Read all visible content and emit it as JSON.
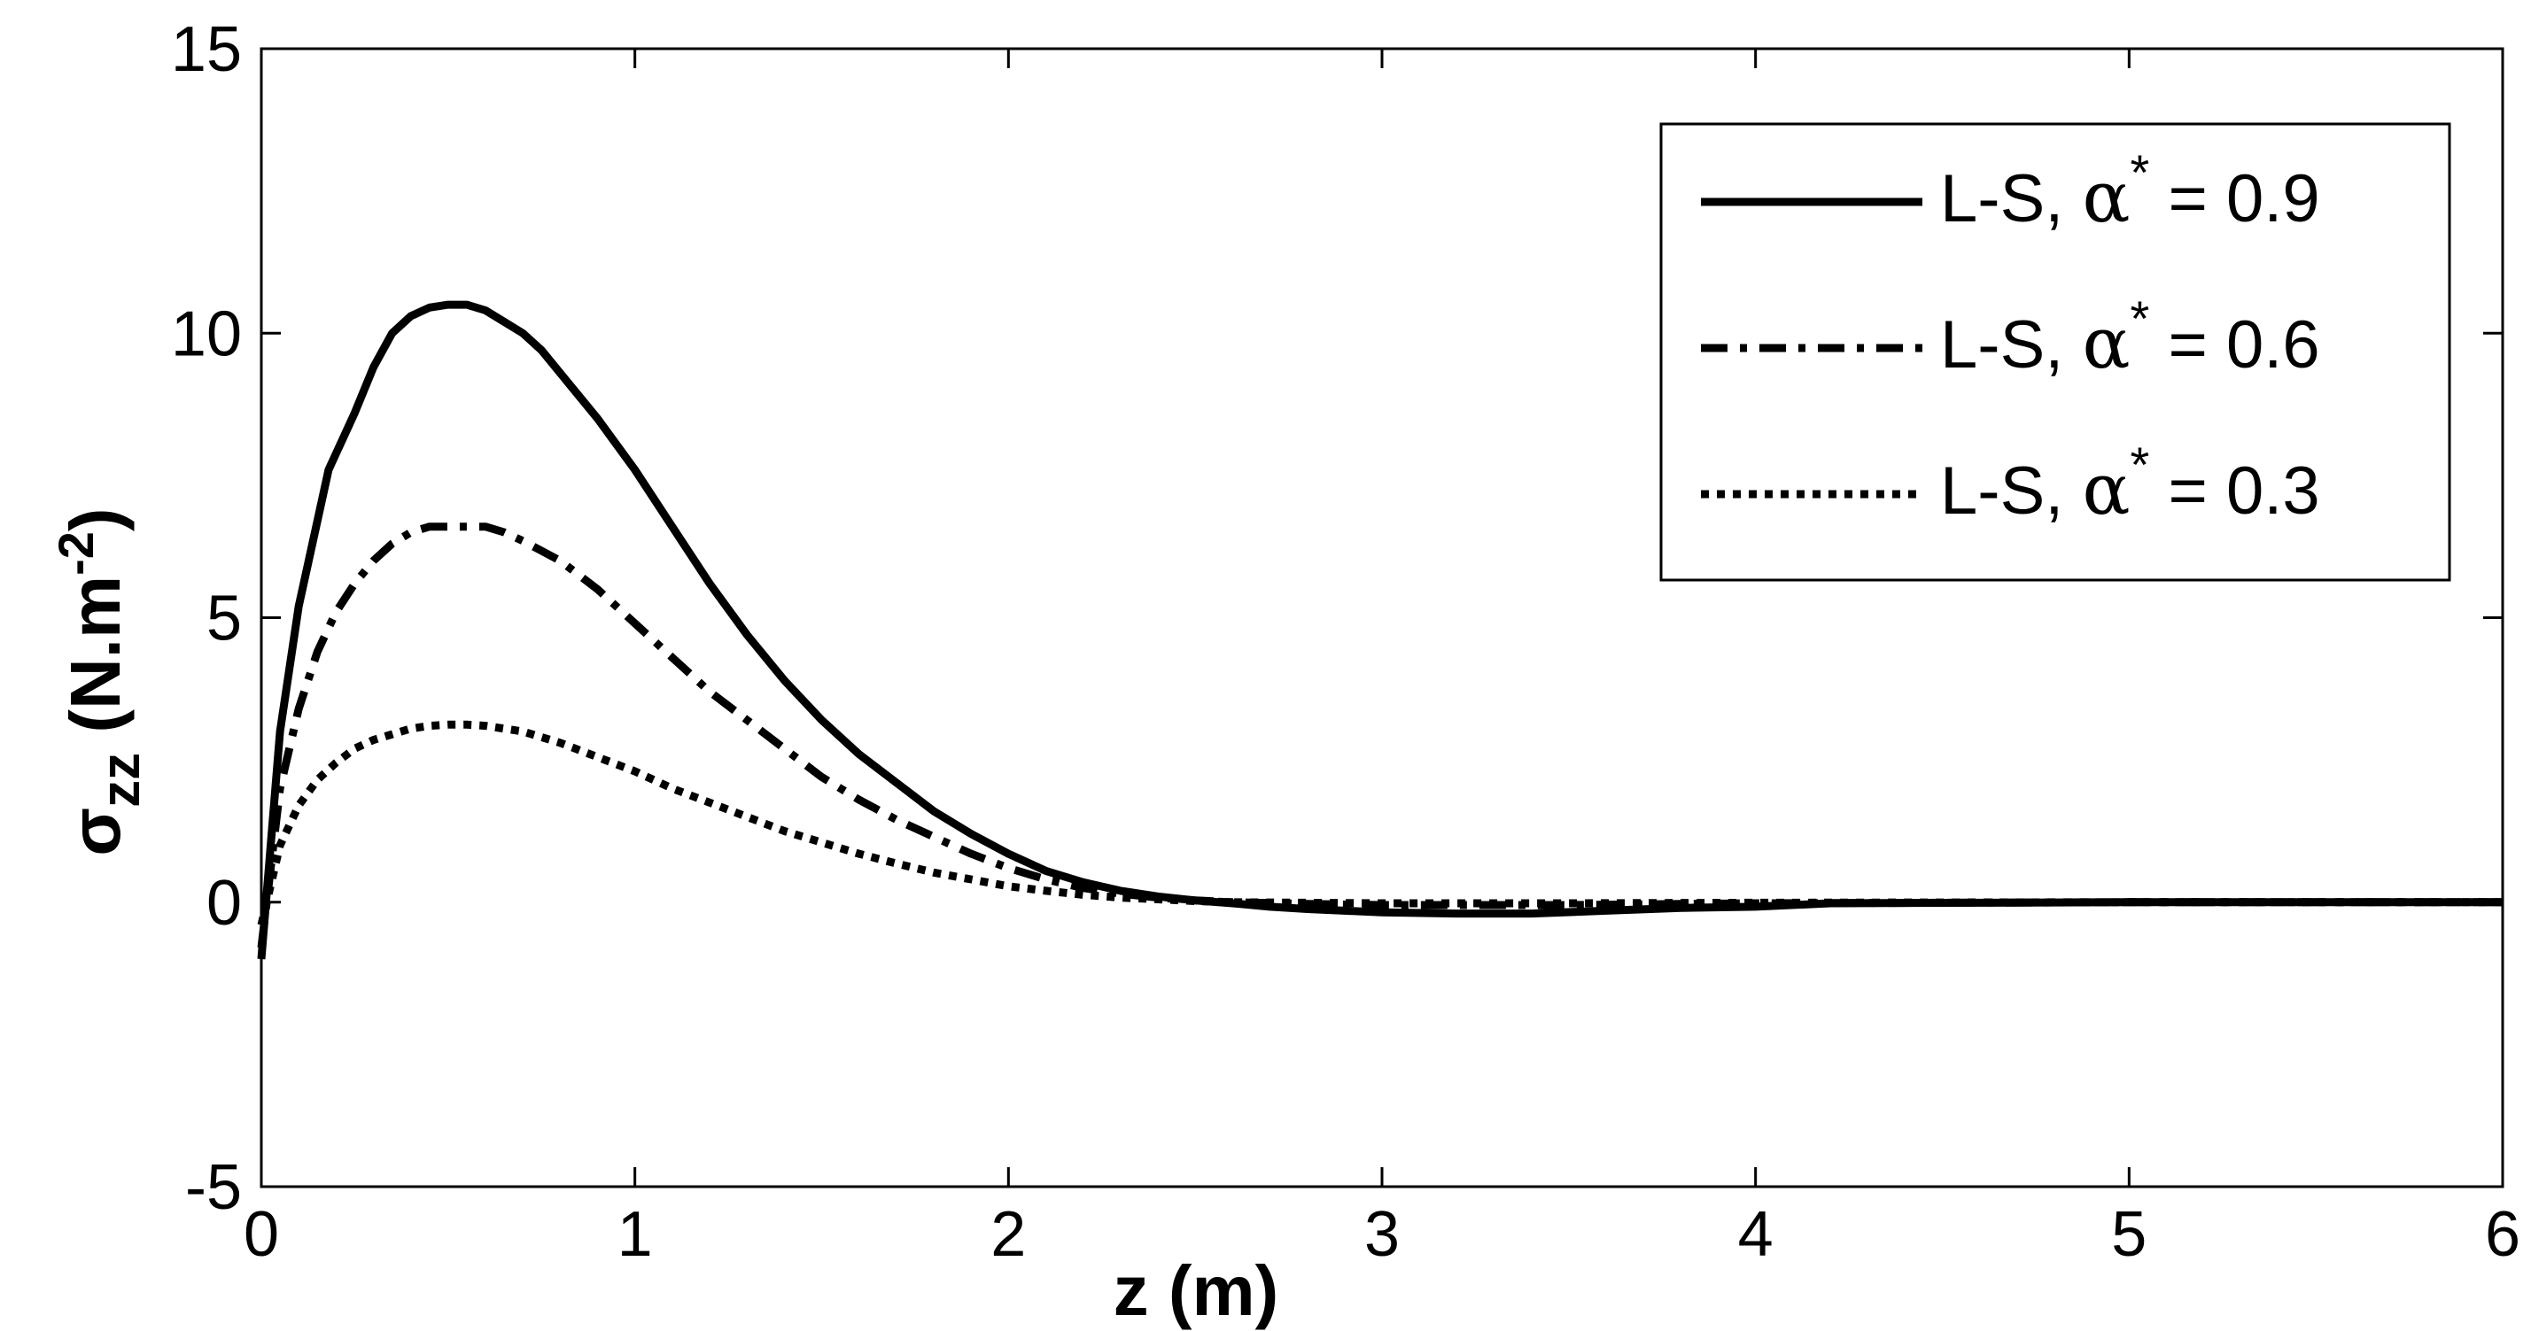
{
  "chart_data": {
    "type": "line",
    "title": "",
    "xlabel": "z (m)",
    "ylabel": {
      "base": "σ",
      "sub": "zz",
      "rest_open": " (N.m",
      "sup": "-2",
      "rest_close": ")"
    },
    "xlim": [
      0,
      6
    ],
    "ylim": [
      -5,
      15
    ],
    "xticks": [
      "0",
      "1",
      "2",
      "3",
      "4",
      "5",
      "6"
    ],
    "yticks": [
      "-5",
      "0",
      "5",
      "10",
      "15"
    ],
    "grid": false,
    "legend_position": "top-right",
    "series": [
      {
        "name": "L-S, α* = 0.9",
        "legend": {
          "prefix": "L-S, ",
          "greek": "α",
          "sup": "*",
          "suffix": " = 0.9"
        },
        "style": "solid",
        "x": [
          0,
          0.05,
          0.1,
          0.18,
          0.25,
          0.3,
          0.35,
          0.4,
          0.45,
          0.5,
          0.55,
          0.6,
          0.65,
          0.7,
          0.75,
          0.8,
          0.9,
          1.0,
          1.1,
          1.2,
          1.3,
          1.4,
          1.5,
          1.6,
          1.7,
          1.8,
          1.9,
          2.0,
          2.1,
          2.2,
          2.3,
          2.4,
          2.5,
          2.6,
          2.7,
          2.8,
          2.9,
          3.0,
          3.2,
          3.4,
          3.6,
          3.8,
          4.0,
          4.2,
          5.0,
          6.0
        ],
        "y": [
          -1.0,
          3.0,
          5.2,
          7.6,
          8.6,
          9.4,
          10.0,
          10.3,
          10.45,
          10.5,
          10.5,
          10.4,
          10.2,
          10.0,
          9.7,
          9.3,
          8.5,
          7.6,
          6.6,
          5.6,
          4.7,
          3.9,
          3.2,
          2.6,
          2.1,
          1.6,
          1.2,
          0.85,
          0.55,
          0.35,
          0.2,
          0.1,
          0.03,
          -0.02,
          -0.08,
          -0.12,
          -0.15,
          -0.18,
          -0.2,
          -0.2,
          -0.15,
          -0.1,
          -0.08,
          -0.02,
          0.0,
          0.0
        ]
      },
      {
        "name": "L-S, α* = 0.6",
        "legend": {
          "prefix": "L-S, ",
          "greek": "α",
          "sup": "*",
          "suffix": " = 0.6"
        },
        "style": "dashdot",
        "x": [
          0,
          0.05,
          0.1,
          0.15,
          0.2,
          0.25,
          0.3,
          0.35,
          0.4,
          0.45,
          0.5,
          0.55,
          0.6,
          0.65,
          0.7,
          0.8,
          0.9,
          1.0,
          1.1,
          1.2,
          1.3,
          1.4,
          1.5,
          1.6,
          1.7,
          1.8,
          1.9,
          2.0,
          2.1,
          2.2,
          2.3,
          2.4,
          2.5,
          2.6,
          2.8,
          3.0,
          3.5,
          4.0,
          5.0,
          6.0
        ],
        "y": [
          -0.8,
          2.0,
          3.4,
          4.4,
          5.1,
          5.6,
          6.0,
          6.3,
          6.5,
          6.6,
          6.6,
          6.6,
          6.6,
          6.5,
          6.35,
          6.0,
          5.5,
          4.9,
          4.3,
          3.7,
          3.2,
          2.7,
          2.2,
          1.8,
          1.45,
          1.15,
          0.85,
          0.6,
          0.4,
          0.25,
          0.15,
          0.08,
          0.03,
          0.0,
          -0.03,
          -0.05,
          -0.05,
          -0.02,
          0.0,
          0.0
        ]
      },
      {
        "name": "L-S, α* = 0.3",
        "legend": {
          "prefix": "L-S, ",
          "greek": "α",
          "sup": "*",
          "suffix": " = 0.3"
        },
        "style": "dotted",
        "x": [
          0,
          0.05,
          0.1,
          0.15,
          0.2,
          0.25,
          0.3,
          0.35,
          0.4,
          0.45,
          0.5,
          0.55,
          0.6,
          0.65,
          0.7,
          0.8,
          0.9,
          1.0,
          1.1,
          1.2,
          1.3,
          1.4,
          1.5,
          1.6,
          1.7,
          1.8,
          1.9,
          2.0,
          2.1,
          2.2,
          2.3,
          2.4,
          2.5,
          2.6,
          2.8,
          3.0,
          3.5,
          4.0,
          5.0,
          6.0
        ],
        "y": [
          -0.4,
          1.0,
          1.7,
          2.15,
          2.45,
          2.7,
          2.85,
          2.95,
          3.05,
          3.1,
          3.12,
          3.12,
          3.1,
          3.05,
          3.0,
          2.8,
          2.55,
          2.3,
          2.0,
          1.75,
          1.5,
          1.25,
          1.05,
          0.85,
          0.68,
          0.52,
          0.4,
          0.28,
          0.2,
          0.13,
          0.08,
          0.05,
          0.02,
          0.0,
          -0.01,
          -0.02,
          -0.02,
          -0.01,
          0.0,
          0.0
        ]
      }
    ]
  }
}
